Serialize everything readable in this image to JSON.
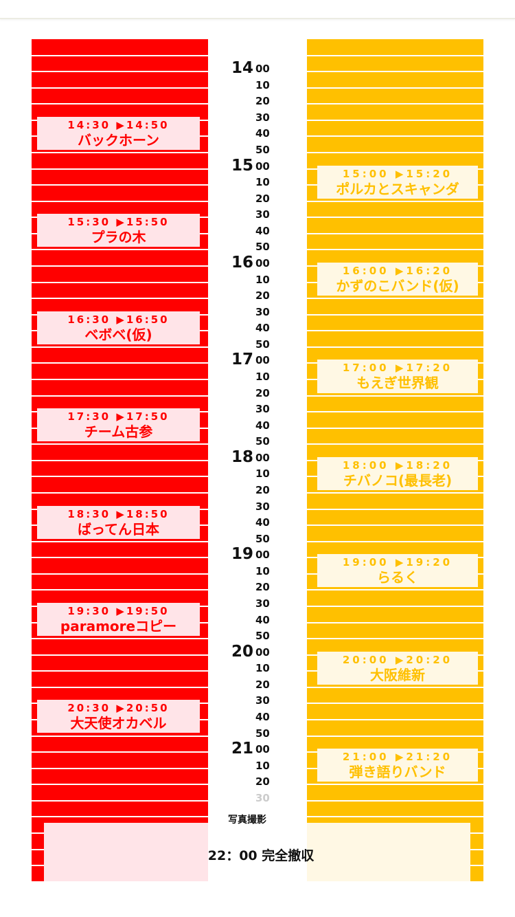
{
  "colors": {
    "left_stage": "#ff0000",
    "right_stage": "#ffc000",
    "left_slot_bg": "#ffe4e8",
    "right_slot_bg": "#fff8e4"
  },
  "hours": [
    "14",
    "15",
    "16",
    "17",
    "18",
    "19",
    "20",
    "21"
  ],
  "minutes": [
    "00",
    "10",
    "20",
    "30",
    "40",
    "50"
  ],
  "extra_minutes": [
    "00",
    "10",
    "20",
    "30"
  ],
  "left_stage": [
    {
      "time": "14:30 ▶14:50",
      "name": "バックホーン"
    },
    {
      "time": "15:30 ▶15:50",
      "name": "プラの木"
    },
    {
      "time": "16:30 ▶16:50",
      "name": "ベボベ(仮)"
    },
    {
      "time": "17:30 ▶17:50",
      "name": "チーム古参"
    },
    {
      "time": "18:30 ▶18:50",
      "name": "ばってん日本"
    },
    {
      "time": "19:30 ▶19:50",
      "name": "paramoreコピー"
    },
    {
      "time": "20:30 ▶20:50",
      "name": "大天使オカベル"
    }
  ],
  "right_stage": [
    {
      "time": "15:00 ▶15:20",
      "name": "ポルカとスキャンダ"
    },
    {
      "time": "16:00 ▶16:20",
      "name": "かずのこバンド(仮)"
    },
    {
      "time": "17:00 ▶17:20",
      "name": "もえぎ世界観"
    },
    {
      "time": "18:00 ▶18:20",
      "name": "チバノコ(最長老)"
    },
    {
      "time": "19:00 ▶19:20",
      "name": "らるく"
    },
    {
      "time": "20:00 ▶20:20",
      "name": "大阪維新"
    },
    {
      "time": "21:00 ▶21:20",
      "name": "弾き語りバンド"
    }
  ],
  "closing": {
    "photo_label": "写真撮影",
    "end_label": "22：00 完全撤収"
  }
}
